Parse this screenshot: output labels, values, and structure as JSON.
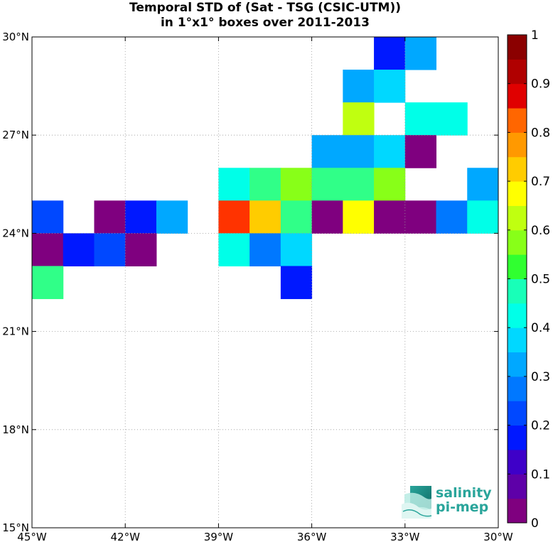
{
  "chart_data": {
    "type": "heatmap",
    "title": "Temporal STD of (Sat - TSG (CSIC-UTM))",
    "subtitle": "in 1°x1° boxes over 2011-2013",
    "xlabel": "",
    "ylabel": "",
    "xlim": [
      -45,
      -30
    ],
    "ylim": [
      15,
      30
    ],
    "xticks": [
      -45,
      -42,
      -39,
      -36,
      -33,
      -30
    ],
    "xtick_labels": [
      "45°W",
      "42°W",
      "39°W",
      "36°W",
      "33°W",
      "30°W"
    ],
    "yticks": [
      15,
      18,
      21,
      24,
      27,
      30
    ],
    "ytick_labels": [
      "15°N",
      "18°N",
      "21°N",
      "24°N",
      "27°N",
      "30°N"
    ],
    "grid": true,
    "colorbar": {
      "min": 0,
      "max": 1,
      "ticks": [
        0,
        0.1,
        0.2,
        0.3,
        0.4,
        0.5,
        0.6,
        0.7,
        0.8,
        0.9,
        1
      ],
      "tick_labels": [
        "0",
        "0.1",
        "0.2",
        "0.3",
        "0.4",
        "0.5",
        "0.6",
        "0.7",
        "0.8",
        "0.9",
        "1"
      ],
      "colormap": "jet",
      "levels": 20,
      "colors": [
        "#7f007f",
        "#5e00a8",
        "#3e00c8",
        "#1e00e8",
        "#0018ff",
        "#0048ff",
        "#0078ff",
        "#00a8ff",
        "#00d8ff",
        "#00ffe8",
        "#18ffb8",
        "#30ff88",
        "#30ff30",
        "#88ff18",
        "#c0ff10",
        "#ffff00",
        "#ffcc00",
        "#ff9900",
        "#ff6600",
        "#ff3300",
        "#e00000",
        "#b00000",
        "#8b0000"
      ]
    },
    "cells": [
      {
        "lon": -34,
        "lat": 29,
        "value": 0.19
      },
      {
        "lon": -33,
        "lat": 29,
        "value": 0.33
      },
      {
        "lon": -35,
        "lat": 28,
        "value": 0.33
      },
      {
        "lon": -34,
        "lat": 28,
        "value": 0.37
      },
      {
        "lon": -35,
        "lat": 27,
        "value": 0.61
      },
      {
        "lon": -33,
        "lat": 27,
        "value": 0.43
      },
      {
        "lon": -32,
        "lat": 27,
        "value": 0.43
      },
      {
        "lon": -36,
        "lat": 26,
        "value": 0.33
      },
      {
        "lon": -35,
        "lat": 26,
        "value": 0.33
      },
      {
        "lon": -34,
        "lat": 26,
        "value": 0.37
      },
      {
        "lon": -33,
        "lat": 26,
        "value": 0.03
      },
      {
        "lon": -39,
        "lat": 25,
        "value": 0.43
      },
      {
        "lon": -38,
        "lat": 25,
        "value": 0.52
      },
      {
        "lon": -37,
        "lat": 25,
        "value": 0.57
      },
      {
        "lon": -36,
        "lat": 25,
        "value": 0.52
      },
      {
        "lon": -35,
        "lat": 25,
        "value": 0.48
      },
      {
        "lon": -34,
        "lat": 25,
        "value": 0.57
      },
      {
        "lon": -31,
        "lat": 25,
        "value": 0.33
      },
      {
        "lon": -45,
        "lat": 24,
        "value": 0.23
      },
      {
        "lon": -43,
        "lat": 24,
        "value": 0.03
      },
      {
        "lon": -42,
        "lat": 24,
        "value": 0.18
      },
      {
        "lon": -41,
        "lat": 24,
        "value": 0.33
      },
      {
        "lon": -39,
        "lat": 24,
        "value": 0.83
      },
      {
        "lon": -38,
        "lat": 24,
        "value": 0.73
      },
      {
        "lon": -37,
        "lat": 24,
        "value": 0.52
      },
      {
        "lon": -36,
        "lat": 24,
        "value": 0.03
      },
      {
        "lon": -35,
        "lat": 24,
        "value": 0.68
      },
      {
        "lon": -34,
        "lat": 24,
        "value": 0.03
      },
      {
        "lon": -33,
        "lat": 24,
        "value": 0.03
      },
      {
        "lon": -32,
        "lat": 24,
        "value": 0.28
      },
      {
        "lon": -31,
        "lat": 24,
        "value": 0.43
      },
      {
        "lon": -45,
        "lat": 23,
        "value": 0.03
      },
      {
        "lon": -44,
        "lat": 23,
        "value": 0.18
      },
      {
        "lon": -43,
        "lat": 23,
        "value": 0.23
      },
      {
        "lon": -42,
        "lat": 23,
        "value": 0.03
      },
      {
        "lon": -39,
        "lat": 23,
        "value": 0.43
      },
      {
        "lon": -38,
        "lat": 23,
        "value": 0.28
      },
      {
        "lon": -37,
        "lat": 23,
        "value": 0.37
      },
      {
        "lon": -37,
        "lat": 22,
        "value": 0.18
      },
      {
        "lon": -45,
        "lat": 22,
        "value": 0.48
      }
    ]
  },
  "logo": {
    "line1": "salinity",
    "line2": "pi-mep"
  }
}
